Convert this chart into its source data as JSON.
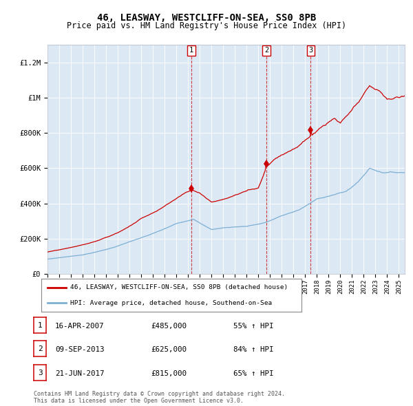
{
  "title": "46, LEASWAY, WESTCLIFF-ON-SEA, SS0 8PB",
  "subtitle": "Price paid vs. HM Land Registry's House Price Index (HPI)",
  "background_color": "#dce9f5",
  "red_line_color": "#cc0000",
  "blue_line_color": "#7bafd4",
  "hpi_label": "HPI: Average price, detached house, Southend-on-Sea",
  "property_label": "46, LEASWAY, WESTCLIFF-ON-SEA, SS0 8PB (detached house)",
  "sale_dates": [
    2007.29,
    2013.69,
    2017.47
  ],
  "sale_prices": [
    485000,
    625000,
    815000
  ],
  "sale_labels": [
    "1",
    "2",
    "3"
  ],
  "sale_annotations": [
    [
      "16-APR-2007",
      "£485,000",
      "55% ↑ HPI"
    ],
    [
      "09-SEP-2013",
      "£625,000",
      "84% ↑ HPI"
    ],
    [
      "21-JUN-2017",
      "£815,000",
      "65% ↑ HPI"
    ]
  ],
  "footer": "Contains HM Land Registry data © Crown copyright and database right 2024.\nThis data is licensed under the Open Government Licence v3.0.",
  "ylim": [
    0,
    1300000
  ],
  "xlim_start": 1995.0,
  "xlim_end": 2025.5,
  "ytick_values": [
    0,
    200000,
    400000,
    600000,
    800000,
    1000000,
    1200000
  ],
  "ytick_labels": [
    "£0",
    "£200K",
    "£400K",
    "£600K",
    "£800K",
    "£1M",
    "£1.2M"
  ]
}
